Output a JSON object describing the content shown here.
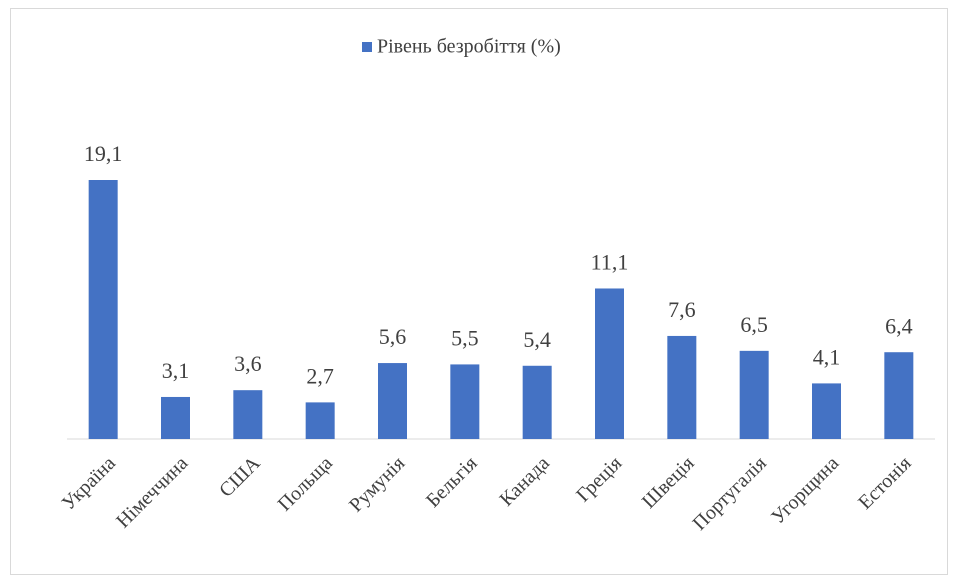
{
  "chart_data": {
    "type": "bar",
    "categories": [
      "Україна",
      "Німеччина",
      "США",
      "Польща",
      "Румунія",
      "Бельгія",
      "Канада",
      "Греція",
      "Швеція",
      "Португалія",
      "Угорщина",
      "Естонія"
    ],
    "series": [
      {
        "name": "Рівень безробіття (%)",
        "color": "#4472c4",
        "values": [
          19.1,
          3.1,
          3.6,
          2.7,
          5.6,
          5.5,
          5.4,
          11.1,
          7.6,
          6.5,
          4.1,
          6.4
        ],
        "value_labels": [
          "19,1",
          "3,1",
          "3,6",
          "2,7",
          "5,6",
          "5,5",
          "5,4",
          "11,1",
          "7,6",
          "6,5",
          "4,1",
          "6,4"
        ]
      }
    ],
    "ylim": [
      0,
      25
    ],
    "legend": "top"
  }
}
